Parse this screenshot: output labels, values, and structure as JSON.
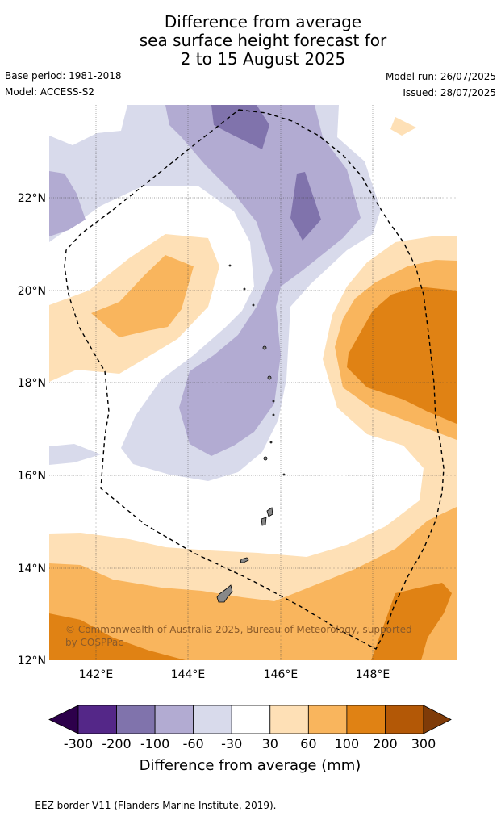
{
  "title": {
    "line1": "Difference from average",
    "line2": "sea surface height forecast for",
    "line3": "2 to 15 August 2025"
  },
  "meta": {
    "base_period": "Base period: 1981-2018",
    "model": "Model: ACCESS-S2",
    "model_run": "Model run: 26/07/2025",
    "issued": "Issued: 28/07/2025"
  },
  "map": {
    "lon_ticks": [
      "142°E",
      "144°E",
      "146°E",
      "148°E"
    ],
    "lat_ticks": [
      "22°N",
      "20°N",
      "18°N",
      "16°N",
      "14°N",
      "12°N"
    ],
    "copyright": "© Commonwealth of Australia 2025, Bureau of Meteorology, supported by COSPPac",
    "copyright_line1": "© Commonwealth of Australia 2025, Bureau of Meteorology, supported",
    "copyright_line2": "by COSPPac",
    "land_color": "#888888",
    "eez_style": "dashed black"
  },
  "colorbar": {
    "title": "Difference from average (mm)",
    "tick_labels": [
      "-300",
      "-200",
      "-100",
      "-60",
      "-30",
      "30",
      "60",
      "100",
      "200",
      "300"
    ],
    "colors": [
      "#2d004b",
      "#542788",
      "#8073ac",
      "#b2abd2",
      "#d8daeb",
      "#ffffff",
      "#fee0b6",
      "#f9b55d",
      "#e08214",
      "#b35806",
      "#7f3b08"
    ],
    "extend": "both"
  },
  "footnote": "--  --  -- EEZ border V11 (Flanders Marine Institute, 2019)."
}
